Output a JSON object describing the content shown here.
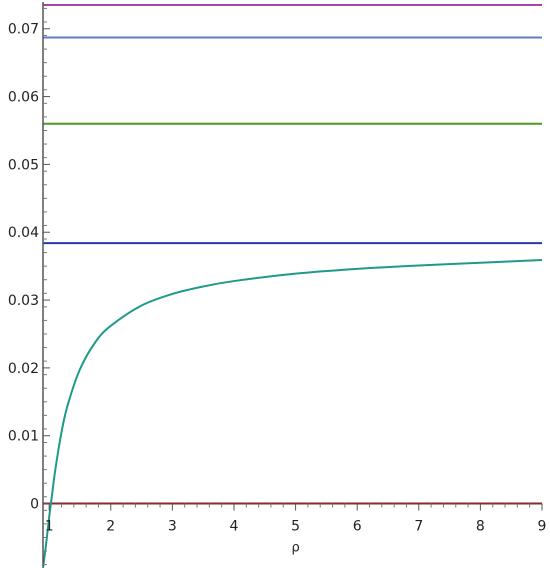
{
  "chart_data": {
    "type": "line",
    "title": "",
    "xlabel": "ρ",
    "ylabel": "",
    "xlim": [
      0.9,
      9
    ],
    "ylim": [
      -0.0095,
      0.0735
    ],
    "grid": false,
    "legend": "none",
    "x_ticks": [
      1,
      2,
      3,
      4,
      5,
      6,
      7,
      8,
      9
    ],
    "y_ticks": [
      0,
      0.01,
      0.02,
      0.03,
      0.04,
      0.05,
      0.06,
      0.07
    ],
    "y_tick_labels": [
      "0",
      "0.01",
      "0.02",
      "0.03",
      "0.04",
      "0.05",
      "0.06",
      "0.07"
    ],
    "series": [
      {
        "color": "#a347a3",
        "x": [
          0.9,
          9
        ],
        "y": [
          0.0735,
          0.0735
        ]
      },
      {
        "color": "#5b7fc4",
        "x": [
          0.9,
          9
        ],
        "y": [
          0.0687,
          0.0687
        ]
      },
      {
        "color": "#4e9a1f",
        "x": [
          0.9,
          9
        ],
        "y": [
          0.056,
          0.056
        ]
      },
      {
        "color": "#2838b0",
        "x": [
          0.9,
          9
        ],
        "y": [
          0.0384,
          0.0384
        ]
      },
      {
        "color": "#8a2a2a",
        "x": [
          0.9,
          9
        ],
        "y": [
          0,
          0
        ]
      },
      {
        "color": "#1f9a8a",
        "x": [
          0.9,
          0.95,
          1,
          1.05,
          1.1,
          1.2,
          1.3,
          1.5,
          1.75,
          2,
          2.5,
          3,
          3.5,
          4,
          5,
          6,
          7,
          8,
          9
        ],
        "y": [
          -0.0095,
          -0.006,
          -0.002,
          0.0015,
          0.005,
          0.0105,
          0.0145,
          0.0198,
          0.0238,
          0.0262,
          0.0292,
          0.0309,
          0.032,
          0.0328,
          0.0339,
          0.0346,
          0.0351,
          0.0355,
          0.0359
        ]
      }
    ]
  }
}
